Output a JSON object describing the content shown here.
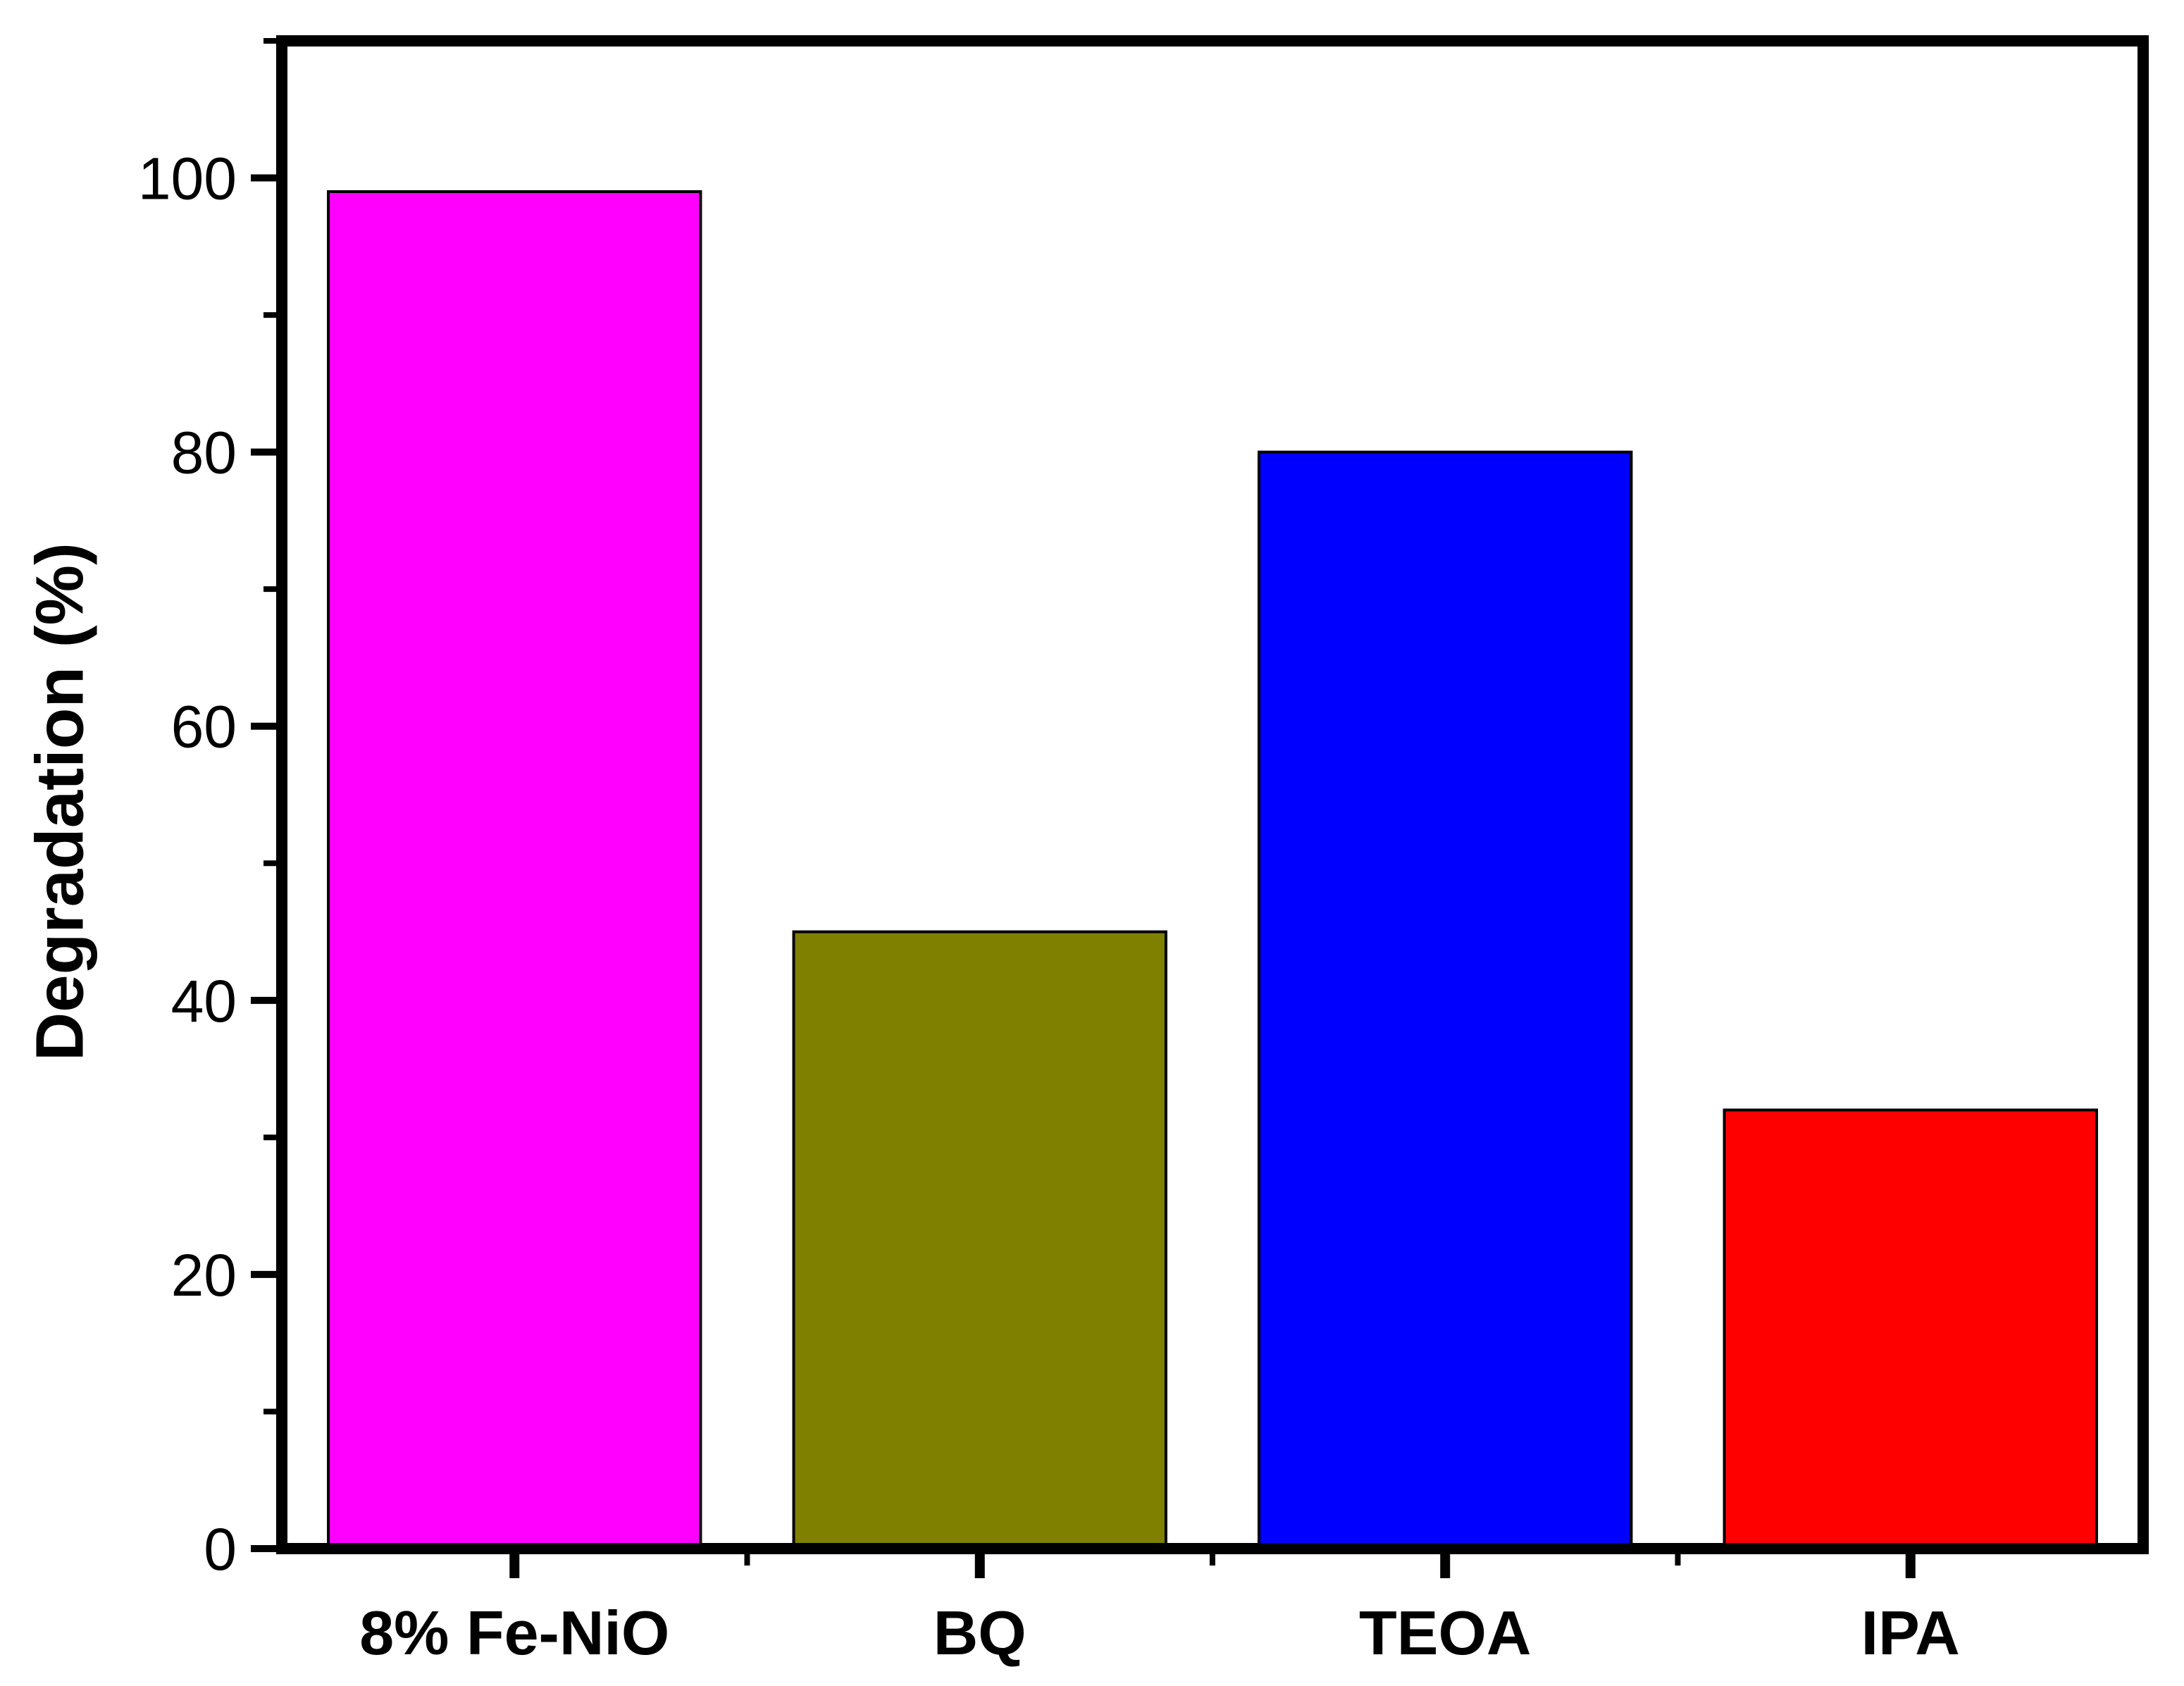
{
  "chart_data": {
    "type": "bar",
    "title": "",
    "xlabel": "",
    "ylabel": "Degradation (%)",
    "categories": [
      "8% Fe-NiO",
      "BQ",
      "TEOA",
      "IPA"
    ],
    "values": [
      99,
      45,
      80,
      32
    ],
    "colors": [
      "#ff00ff",
      "#808000",
      "#0000ff",
      "#ff0000"
    ],
    "ylim": [
      0,
      110
    ],
    "yticks": [
      0,
      20,
      40,
      60,
      80,
      100
    ],
    "ytick_labels": [
      "0",
      "20",
      "40",
      "60",
      "80",
      "100"
    ],
    "minor_yticks": [
      10,
      30,
      50,
      70,
      90,
      110
    ],
    "grid": false,
    "legend": "none"
  }
}
